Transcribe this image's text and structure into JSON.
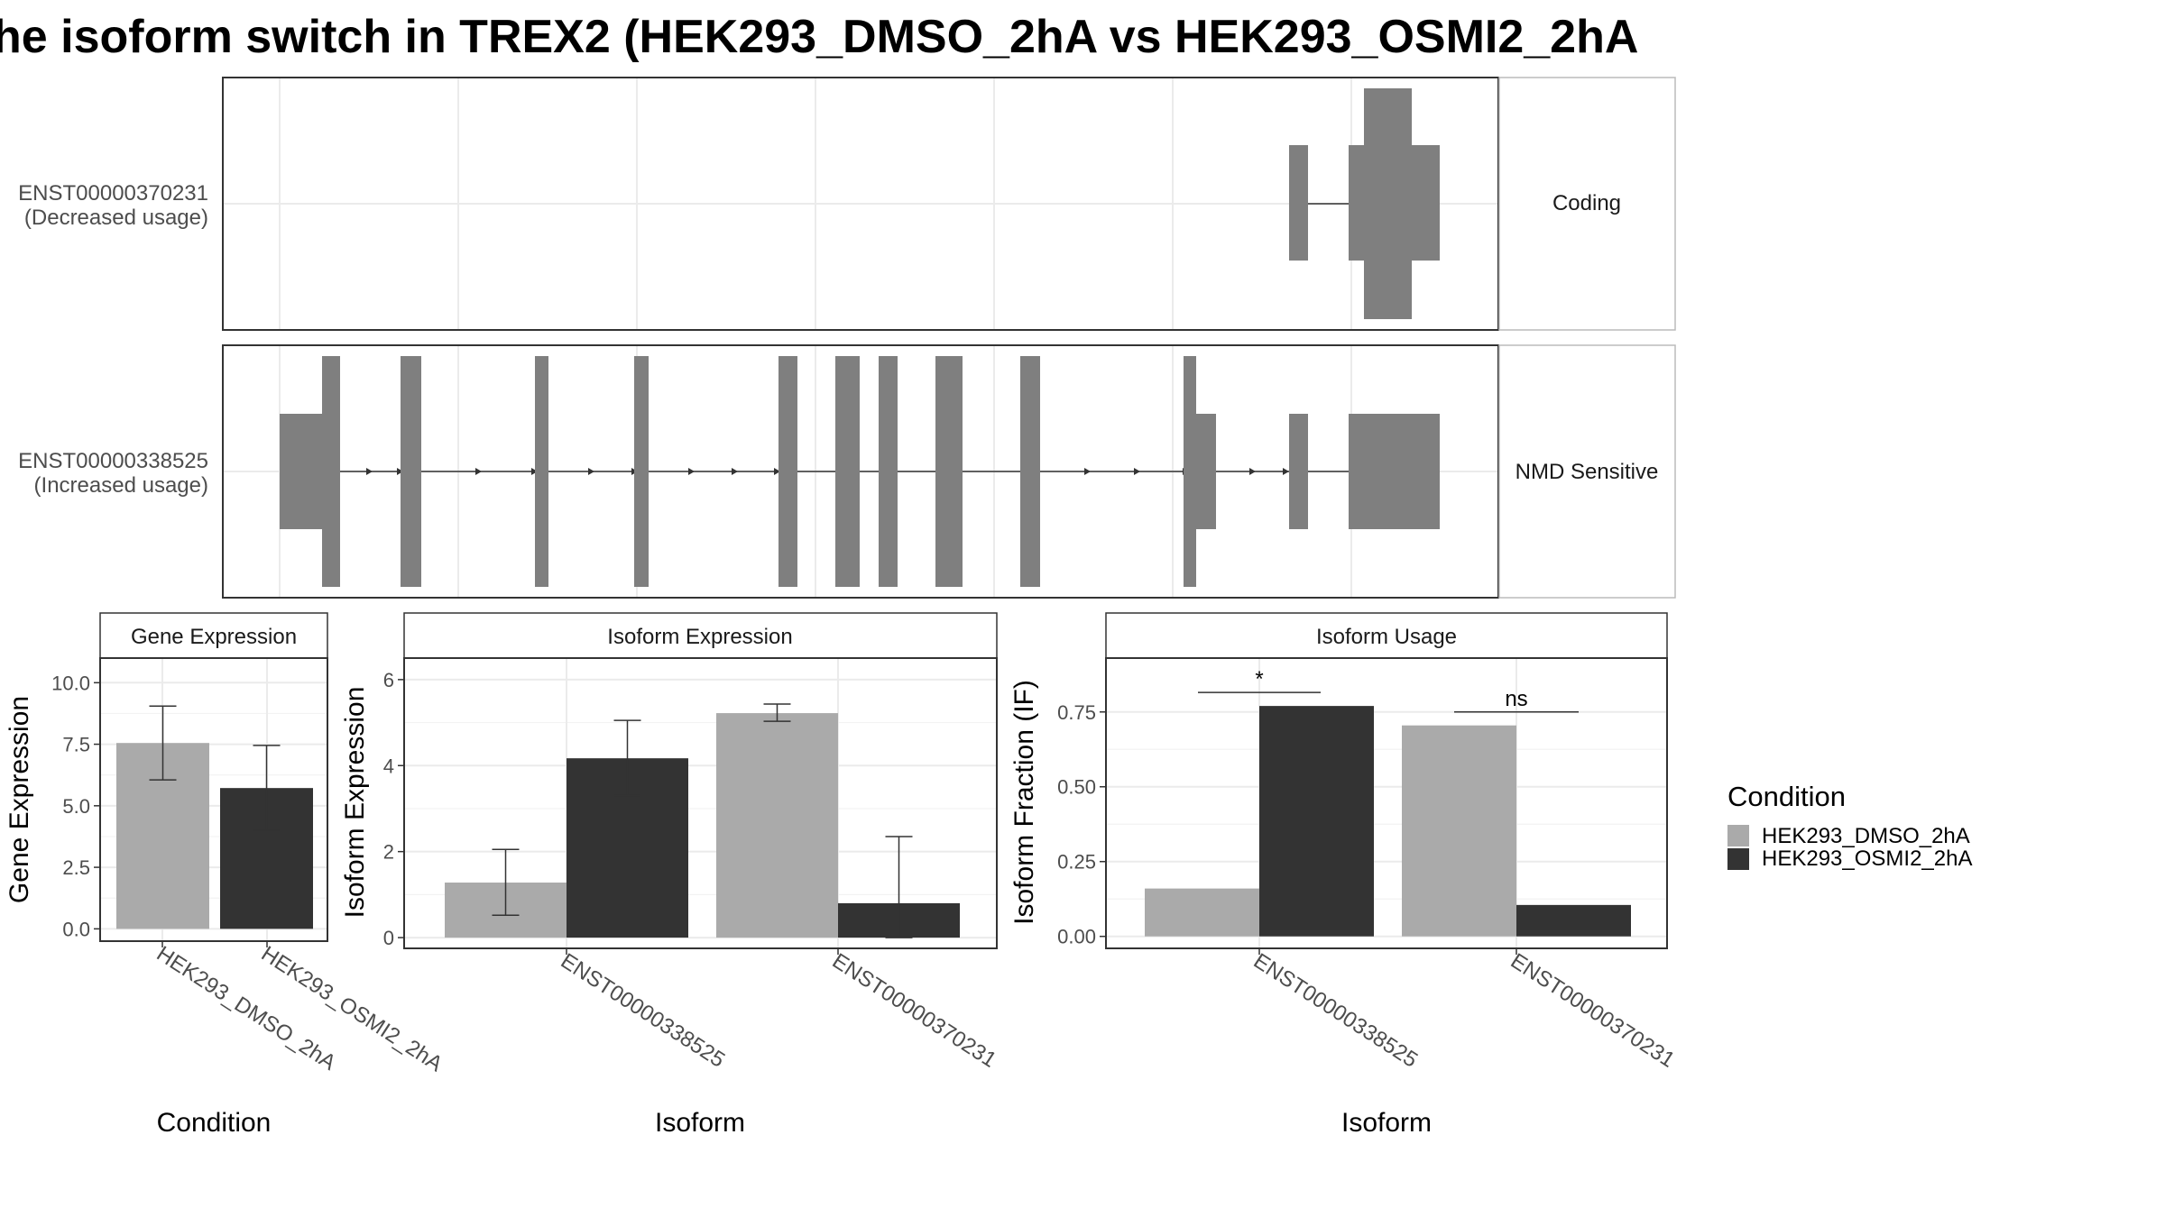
{
  "title": "he isoform switch in TREX2 (HEK293_DMSO_2hA vs HEK293_OSMI2_2hA",
  "legend": {
    "title": "Condition",
    "items": [
      {
        "label": "HEK293_DMSO_2hA",
        "color": "#aaaaaa"
      },
      {
        "label": "HEK293_OSMI2_2hA",
        "color": "#333333"
      }
    ]
  },
  "transcripts": [
    {
      "name_line1": "ENST00000370231",
      "name_line2": "(Decreased usage)",
      "category": "Coding"
    },
    {
      "name_line1": "ENST00000338525",
      "name_line2": "(Increased usage)",
      "category": "NMD Sensitive"
    }
  ],
  "chart_data": [
    {
      "type": "bar",
      "panel": "Gene Expression",
      "xlabel": "Condition",
      "ylabel": "Gene Expression",
      "categories": [
        "HEK293_DMSO_2hA",
        "HEK293_OSMI2_2hA"
      ],
      "values": [
        7.55,
        5.72
      ],
      "err_low": [
        6.05,
        4.0
      ],
      "err_high": [
        9.05,
        7.45
      ],
      "ylim": [
        -0.5,
        11.0
      ],
      "yticks": [
        "0.0",
        "2.5",
        "5.0",
        "7.5",
        "10.0"
      ]
    },
    {
      "type": "bar",
      "panel": "Isoform Expression",
      "xlabel": "Isoform",
      "ylabel": "Isoform Expression",
      "categories": [
        "ENST00000338525",
        "ENST00000370231"
      ],
      "series": [
        {
          "values": [
            1.28,
            5.22
          ],
          "err_low": [
            0.52,
            5.03
          ],
          "err_high": [
            2.05,
            5.43
          ]
        },
        {
          "values": [
            4.17,
            0.8
          ],
          "err_low": [
            3.3,
            0.0
          ],
          "err_high": [
            5.05,
            2.35
          ]
        }
      ],
      "ylim": [
        -0.25,
        6.5
      ],
      "yticks": [
        "0",
        "2",
        "4",
        "6"
      ]
    },
    {
      "type": "bar",
      "panel": "Isoform Usage",
      "xlabel": "Isoform",
      "ylabel": "Isoform Fraction (IF)",
      "categories": [
        "ENST00000338525",
        "ENST00000370231"
      ],
      "series": [
        {
          "values": [
            0.16,
            0.705
          ]
        },
        {
          "values": [
            0.77,
            0.105
          ]
        }
      ],
      "significance": [
        "*",
        "ns"
      ],
      "ylim": [
        -0.04,
        0.93
      ],
      "yticks": [
        "0.00",
        "0.25",
        "0.50",
        "0.75"
      ]
    }
  ]
}
